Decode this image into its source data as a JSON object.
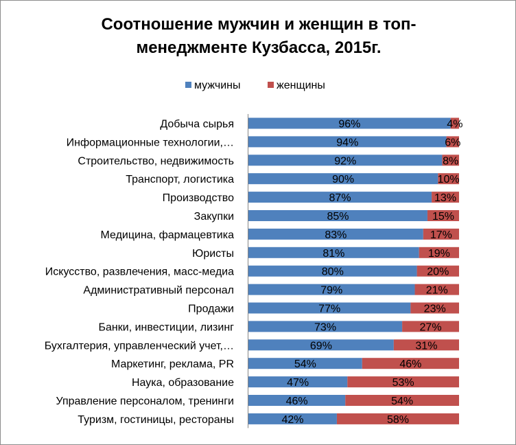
{
  "chart_data": {
    "type": "bar",
    "stacked": true,
    "orientation": "horizontal",
    "title_lines": [
      "Соотношение мужчин и женщин в топ-",
      "менеджменте Кузбасса,  2015г."
    ],
    "legend_position": "top",
    "grid": false,
    "xlim": [
      0,
      100
    ],
    "value_suffix": "%",
    "categories": [
      "Добыча сырья",
      "Информационные технологии,…",
      "Строительство, недвижимость",
      "Транспорт, логистика",
      "Производство",
      "Закупки",
      "Медицина, фармацевтика",
      "Юристы",
      "Искусство, развлечения, масс-медиа",
      "Административный персонал",
      "Продажи",
      "Банки, инвестиции,  лизинг",
      "Бухгалтерия, управленческий учет,…",
      "Маркетинг, реклама, PR",
      "Наука, образование",
      "Управление персоналом, тренинги",
      "Туризм, гостиницы, рестораны"
    ],
    "series": [
      {
        "name": "мужчины",
        "color": "#4f81bd",
        "values": [
          96,
          94,
          92,
          90,
          87,
          85,
          83,
          81,
          80,
          79,
          77,
          73,
          69,
          54,
          47,
          46,
          42
        ]
      },
      {
        "name": "женщины",
        "color": "#c0504d",
        "values": [
          4,
          6,
          8,
          10,
          13,
          15,
          17,
          19,
          20,
          21,
          23,
          27,
          31,
          46,
          53,
          54,
          58
        ]
      }
    ]
  }
}
